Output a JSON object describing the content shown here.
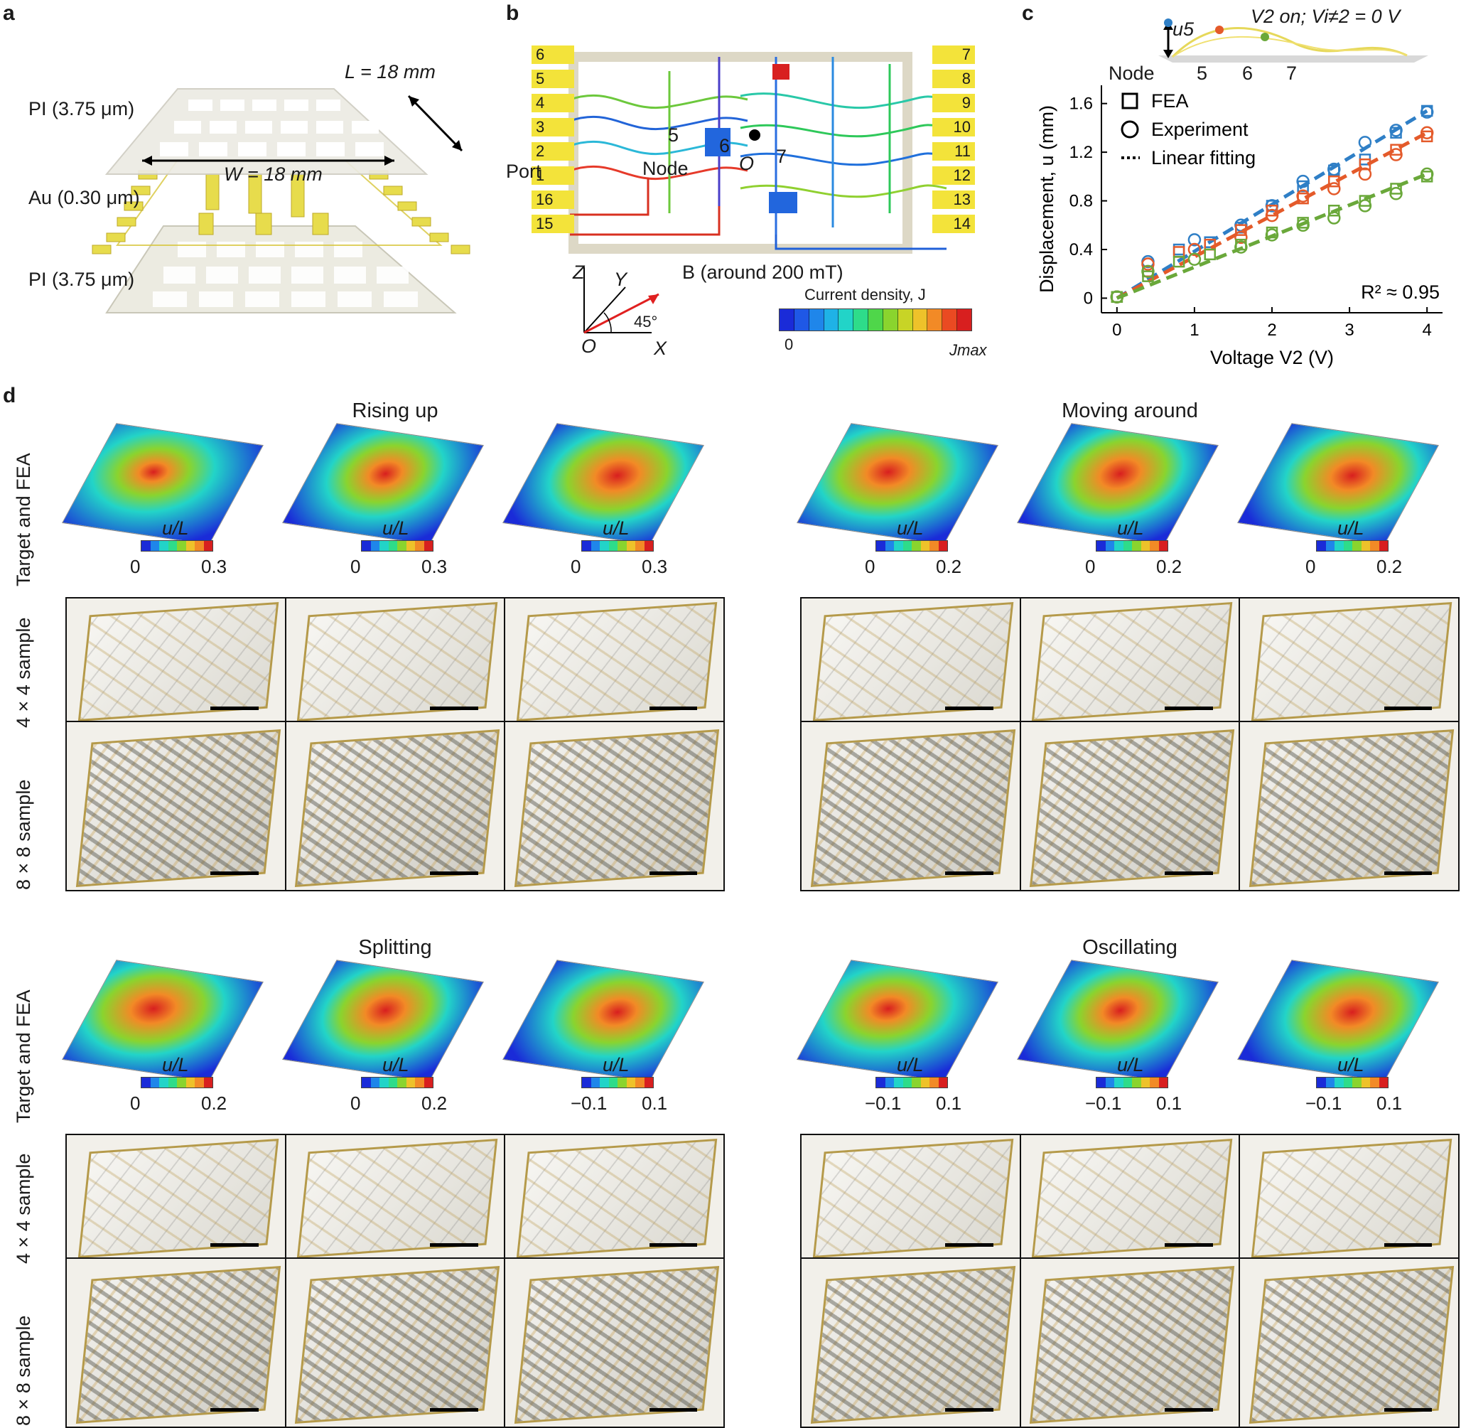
{
  "panel_labels": {
    "a": "a",
    "b": "b",
    "c": "c",
    "d": "d"
  },
  "panel_a": {
    "layer_top": "PI (3.75 μm)",
    "layer_mid": "Au (0.30 μm)",
    "layer_bot": "PI (3.75 μm)",
    "dim_L": "L = 18 mm",
    "dim_W": "W = 18 mm"
  },
  "panel_b": {
    "ports_left": [
      "6",
      "5",
      "4",
      "3",
      "2",
      "1",
      "16",
      "15"
    ],
    "ports_right": [
      "7",
      "8",
      "9",
      "10",
      "11",
      "12",
      "13",
      "14"
    ],
    "port_label": "Port",
    "node_label": "Node",
    "node_numbers": [
      "5",
      "6",
      "7"
    ],
    "origin_label": "O",
    "axis_z": "Z",
    "axis_y": "Y",
    "axis_x": "X",
    "axis_o": "O",
    "angle": "45°",
    "b_field": "B (around 200 mT)",
    "current_density_label": "Current density, J",
    "cbar_min": "0",
    "cbar_max": "Jmax",
    "cbar_colors": [
      "#1a2bd8",
      "#1f58e6",
      "#1f86ea",
      "#1fb2e6",
      "#22d4c8",
      "#2edc8a",
      "#4fd64a",
      "#8ad42e",
      "#c8d426",
      "#eec22a",
      "#f28a26",
      "#ea4a22",
      "#d81f1f"
    ]
  },
  "panel_c": {
    "header": "V2 on; Vi≠2 = 0 V",
    "u5_label": "u5",
    "node_label": "Node",
    "node_numbers": [
      "5",
      "6",
      "7"
    ],
    "legend": {
      "fea": "FEA",
      "experiment": "Experiment",
      "fit": "Linear fitting"
    },
    "r2": "R² ≈ 0.95",
    "xlabel": "Voltage V2 (V)",
    "ylabel": "Displacement, u (mm)",
    "series_colors": [
      "#2f7fc6",
      "#e45a2a",
      "#6aa83a"
    ]
  },
  "chart_data": {
    "type": "scatter",
    "xlabel": "Voltage V2 (V)",
    "ylabel": "Displacement, u (mm)",
    "xlim": [
      -0.2,
      4.2
    ],
    "ylim": [
      -0.12,
      1.75
    ],
    "xticks": [
      0,
      1,
      2,
      3,
      4
    ],
    "yticks": [
      0,
      0.4,
      0.8,
      1.2,
      1.6
    ],
    "legend": [
      "FEA",
      "Experiment",
      "Linear fitting"
    ],
    "annotation": "R² ≈ 0.95",
    "series": [
      {
        "name": "5",
        "color": "#2f7fc6",
        "fea_x": [
          0,
          0.4,
          0.8,
          1.2,
          1.6,
          2.0,
          2.4,
          2.8,
          3.2,
          3.6,
          4.0
        ],
        "fea_y": [
          0.01,
          0.22,
          0.4,
          0.46,
          0.58,
          0.76,
          0.92,
          1.05,
          1.14,
          1.36,
          1.54
        ],
        "exp_x": [
          0,
          0.4,
          1.0,
          1.6,
          2.0,
          2.4,
          2.8,
          3.2,
          3.6,
          4.0
        ],
        "exp_y": [
          0.01,
          0.3,
          0.48,
          0.6,
          0.76,
          0.96,
          1.06,
          1.28,
          1.38,
          1.53
        ],
        "fit": [
          0,
          0,
          4.0,
          1.54
        ]
      },
      {
        "name": "6",
        "color": "#e45a2a",
        "fea_x": [
          0,
          0.4,
          0.8,
          1.2,
          1.6,
          2.0,
          2.4,
          2.8,
          3.2,
          3.6,
          4.0
        ],
        "fea_y": [
          0.01,
          0.22,
          0.38,
          0.44,
          0.56,
          0.72,
          0.82,
          0.96,
          1.1,
          1.22,
          1.33
        ],
        "exp_x": [
          0,
          0.4,
          1.0,
          1.6,
          2.0,
          2.4,
          2.8,
          3.2,
          3.6,
          4.0
        ],
        "exp_y": [
          0.01,
          0.28,
          0.4,
          0.5,
          0.68,
          0.84,
          0.9,
          1.02,
          1.18,
          1.36
        ],
        "fit": [
          0,
          0,
          4.0,
          1.36
        ]
      },
      {
        "name": "7",
        "color": "#6aa83a",
        "fea_x": [
          0,
          0.4,
          0.8,
          1.2,
          1.6,
          2.0,
          2.4,
          2.8,
          3.2,
          3.6,
          4.0
        ],
        "fea_y": [
          0.01,
          0.18,
          0.3,
          0.36,
          0.44,
          0.54,
          0.62,
          0.72,
          0.8,
          0.9,
          1.0
        ],
        "exp_x": [
          0,
          0.4,
          1.0,
          1.6,
          2.0,
          2.4,
          2.8,
          3.2,
          3.6,
          4.0
        ],
        "exp_y": [
          0.01,
          0.22,
          0.32,
          0.42,
          0.52,
          0.6,
          0.66,
          0.76,
          0.86,
          1.02
        ],
        "fit": [
          0,
          0,
          4.0,
          1.02
        ]
      }
    ]
  },
  "panel_d": {
    "row_fea": "Target and FEA",
    "row_4x4": "4 × 4 sample",
    "row_8x8": "8 × 8 sample",
    "colorbar_var": "u/L",
    "groups": [
      {
        "title": "Rising up",
        "cbars": [
          [
            "0",
            "0.3"
          ],
          [
            "0",
            "0.3"
          ],
          [
            "0",
            "0.3"
          ]
        ],
        "peaks": [
          0.15,
          0.55,
          1.0
        ]
      },
      {
        "title": "Moving around",
        "cbars": [
          [
            "0",
            "0.2"
          ],
          [
            "0",
            "0.2"
          ],
          [
            "0",
            "0.2"
          ]
        ],
        "peaks": [
          0.8,
          0.95,
          0.9
        ]
      },
      {
        "title": "Splitting",
        "cbars": [
          [
            "0",
            "0.2"
          ],
          [
            "0",
            "0.2"
          ],
          [
            "−0.1",
            "0.1"
          ]
        ],
        "peaks": [
          0.9,
          0.9,
          0.7
        ]
      },
      {
        "title": "Oscillating",
        "cbars": [
          [
            "−0.1",
            "0.1"
          ],
          [
            "−0.1",
            "0.1"
          ],
          [
            "−0.1",
            "0.1"
          ]
        ],
        "peaks": [
          0.5,
          0.65,
          0.9
        ]
      }
    ],
    "fea_cbar_colors": [
      "#1a2bd8",
      "#1f86ea",
      "#22d4c8",
      "#2edc8a",
      "#8ad42e",
      "#eec22a",
      "#f28a26",
      "#d81f1f"
    ]
  }
}
